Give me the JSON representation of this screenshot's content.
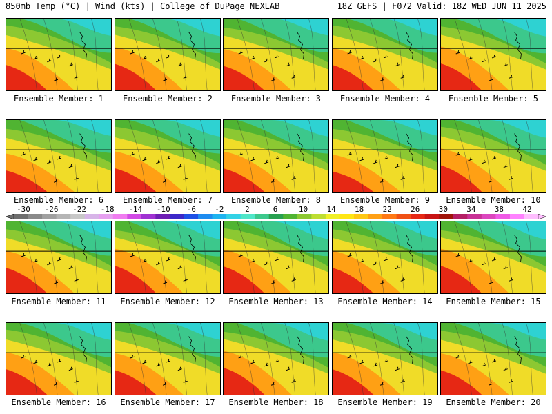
{
  "header": {
    "left": "850mb Temp (°C) | Wind (kts) | College of DuPage NEXLAB",
    "right": "18Z GEFS | F072 Valid: 18Z WED JUN 11 2025"
  },
  "panels": [
    {
      "label": "Ensemble Member: 1",
      "warm": 0.55
    },
    {
      "label": "Ensemble Member: 2",
      "warm": 0.6
    },
    {
      "label": "Ensemble Member: 3",
      "warm": 0.5
    },
    {
      "label": "Ensemble Member: 4",
      "warm": 0.55
    },
    {
      "label": "Ensemble Member: 5",
      "warm": 0.62
    },
    {
      "label": "Ensemble Member: 6",
      "warm": 0.35
    },
    {
      "label": "Ensemble Member: 7",
      "warm": 0.45
    },
    {
      "label": "Ensemble Member: 8",
      "warm": 0.45
    },
    {
      "label": "Ensemble Member: 9",
      "warm": 0.3
    },
    {
      "label": "Ensemble Member: 10",
      "warm": 0.6
    },
    {
      "label": "Ensemble Member: 11",
      "warm": 0.55
    },
    {
      "label": "Ensemble Member: 12",
      "warm": 0.65
    },
    {
      "label": "Ensemble Member: 13",
      "warm": 0.62
    },
    {
      "label": "Ensemble Member: 14",
      "warm": 0.55
    },
    {
      "label": "Ensemble Member: 15",
      "warm": 0.65
    },
    {
      "label": "Ensemble Member: 16",
      "warm": 0.55
    },
    {
      "label": "Ensemble Member: 17",
      "warm": 0.5
    },
    {
      "label": "Ensemble Member: 18",
      "warm": 0.62
    },
    {
      "label": "Ensemble Member: 19",
      "warm": 0.55
    },
    {
      "label": "Ensemble Member: 20",
      "warm": 0.5
    }
  ],
  "colorbar": {
    "ticks": [
      "-30",
      "-26",
      "-22",
      "-18",
      "-14",
      "-10",
      "-6",
      "-2",
      "2",
      "6",
      "10",
      "14",
      "18",
      "22",
      "26",
      "30",
      "34",
      "38",
      "42"
    ],
    "colors": [
      "#6e6e6e",
      "#8a8a8a",
      "#a0a0a0",
      "#b5b5b5",
      "#c8c8c8",
      "#d7b4e8",
      "#e6a0f0",
      "#f07cf0",
      "#d24be6",
      "#a032d2",
      "#6e1eb4",
      "#3c28c8",
      "#1e50e6",
      "#1e8cf0",
      "#1eb4f0",
      "#32d2e6",
      "#50e6c8",
      "#3cc88c",
      "#28a050",
      "#50b432",
      "#8cc832",
      "#bede32",
      "#f0f028",
      "#ffe614",
      "#ffc814",
      "#ffa014",
      "#ff7814",
      "#f05014",
      "#e62814",
      "#c81414",
      "#a0140a",
      "#b41e64",
      "#c83296",
      "#dc46be",
      "#f05ae6",
      "#ff82ff",
      "#ffbeff"
    ]
  }
}
